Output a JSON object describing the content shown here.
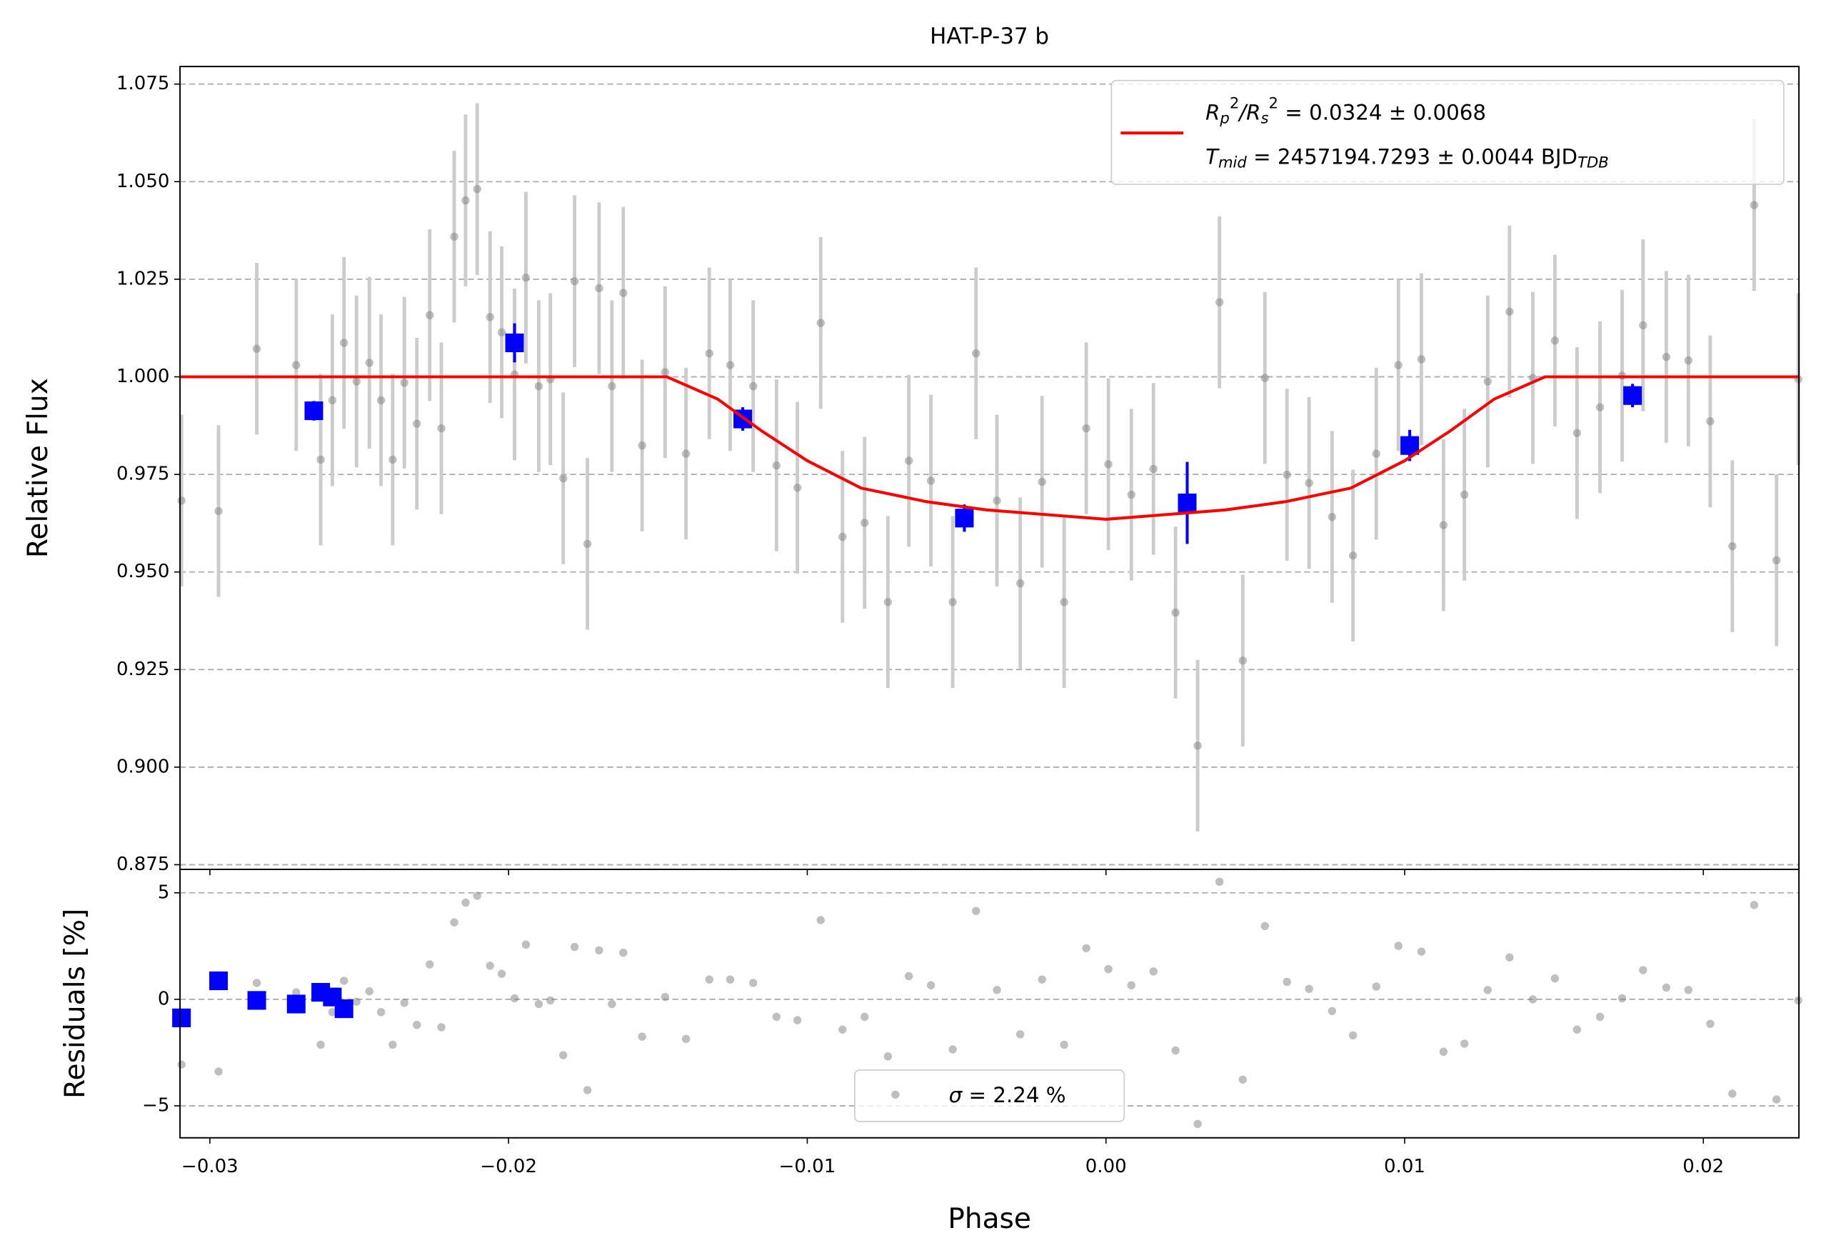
{
  "chart_data": [
    {
      "type": "scatter",
      "title": "HAT-P-37 b",
      "ylabel": "Relative Flux",
      "xlim": [
        -0.031,
        0.0232
      ],
      "ylim": [
        0.8738,
        1.0795
      ],
      "grid": true,
      "legend_loc": "upper right",
      "xticks": [
        {
          "value": -0.03,
          "label": "−0.03"
        },
        {
          "value": -0.02,
          "label": "−0.02"
        },
        {
          "value": -0.01,
          "label": "−0.01"
        },
        {
          "value": 0,
          "label": "0.00"
        },
        0.01,
        0.02
      ],
      "yticks": [
        0.875,
        {
          "value": 0.9,
          "label": "0.900"
        },
        0.925,
        {
          "value": 0.95,
          "label": "0.950"
        },
        0.975,
        {
          "value": 1,
          "label": "1.000"
        },
        1.025,
        {
          "value": 1.05,
          "label": "1.050"
        },
        1.075
      ],
      "x": [
        -0.03095,
        -0.02971,
        -0.02843,
        -0.02711,
        -0.02629,
        -0.0259,
        -0.02551,
        -0.02509,
        -0.02466,
        -0.02427,
        -0.02388,
        -0.02349,
        -0.02307,
        -0.02264,
        -0.02225,
        -0.02182,
        -0.02144,
        -0.02105,
        -0.02062,
        -0.02023,
        -0.0198,
        -0.01942,
        -0.01899,
        -0.0186,
        -0.01817,
        -0.01779,
        -0.01736,
        -0.01697,
        -0.01654,
        -0.01616,
        -0.01553,
        -0.01476,
        -0.01406,
        -0.01328,
        -0.01258,
        -0.01181,
        -0.01103,
        -0.01033,
        -0.00955,
        -0.00882,
        -0.00808,
        -0.0073,
        -0.0066,
        -0.00586,
        -0.00513,
        -0.00435,
        -0.00365,
        -0.00287,
        -0.00214,
        -0.0014,
        -0.00066,
        8e-05,
        0.00085,
        0.00159,
        0.00233,
        0.00307,
        0.0038,
        0.00458,
        0.00532,
        0.00606,
        0.0068,
        0.00757,
        0.00827,
        0.00905,
        0.00979,
        0.01056,
        0.0113,
        0.012,
        0.01278,
        0.01351,
        0.01429,
        0.01503,
        0.01577,
        0.01654,
        0.01728,
        0.01798,
        0.01876,
        0.0195,
        0.02023,
        0.02097,
        0.0217,
        0.02245,
        0.02318
      ],
      "series": [
        {
          "color": "#808080",
          "yerr": 0.022,
          "values": [
            0.9683,
            0.9656,
            1.0072,
            1.003,
            0.9788,
            0.994,
            1.0087,
            0.9988,
            1.0036,
            0.994,
            0.9788,
            0.9985,
            0.988,
            1.0158,
            0.9868,
            1.0359,
            1.0452,
            1.0481,
            1.0153,
            1.0114,
            1.0006,
            1.0254,
            0.9976,
            0.9994,
            0.974,
            1.0245,
            0.9572,
            1.0227,
            0.9976,
            1.0215,
            0.9824,
            1.0012,
            0.9803,
            1.006,
            1.003,
            0.9976,
            0.9773,
            0.9716,
            1.0138,
            0.959,
            0.9626,
            0.9423,
            0.9785,
            0.9734,
            0.9423,
            1.006,
            0.9683,
            0.9471,
            0.9731,
            0.9423,
            0.9868,
            0.9776,
            0.9698,
            0.9764,
            0.9396,
            0.9055,
            1.0191,
            0.9273,
            0.9997,
            0.9749,
            0.9728,
            0.9641,
            0.9542,
            0.9803,
            1.003,
            1.0045,
            0.962,
            0.9698,
            0.9988,
            1.0167,
            0.9997,
            1.0093,
            0.9856,
            0.9922,
            1.0003,
            1.0132,
            1.0051,
            1.0042,
            0.9886,
            0.9566,
            1.044,
            0.953,
            0.9994
          ]
        },
        {
          "color": "#0000ff",
          "x": [
            -0.02652,
            -0.0198,
            -0.01216,
            -0.00474,
            0.00272,
            0.01017,
            0.01763
          ],
          "values": [
            0.9913,
            1.0087,
            0.9892,
            0.9638,
            0.9677,
            0.9824,
            0.9952
          ],
          "yerr": [
            0.0025,
            0.005,
            0.003,
            0.0035,
            0.0105,
            0.004,
            0.003
          ]
        },
        {
          "color": "#ff0000",
          "x": [
            -0.031,
            -0.0147,
            -0.013,
            -0.0115,
            -0.01,
            -0.0082,
            -0.006,
            -0.004,
            -0.002,
            0,
            0.002,
            0.004,
            0.006,
            0.0082,
            0.01,
            0.0115,
            0.013,
            0.0147,
            0.0232
          ],
          "values": [
            1,
            1,
            0.9943,
            0.986,
            0.9785,
            0.9715,
            0.968,
            0.9659,
            0.9647,
            0.9635,
            0.9647,
            0.9659,
            0.968,
            0.9715,
            0.9785,
            0.986,
            0.9943,
            1,
            1
          ],
          "legend": [
            [
              {
                "text": "R",
                "style": "italic"
              },
              {
                "text": "p",
                "style": "sub"
              },
              {
                "text": "2",
                "style": "sup"
              },
              {
                "text": "/",
                "style": "italic"
              },
              {
                "text": "R",
                "style": "italic"
              },
              {
                "text": "s",
                "style": "sub"
              },
              {
                "text": "2",
                "style": "sup"
              },
              {
                "text": " = 0.0324 ± 0.0068",
                "style": "normal"
              }
            ],
            [
              {
                "text": "T",
                "style": "italic"
              },
              {
                "text": "mid",
                "style": "sub"
              },
              {
                "text": " = 2457194.7293 ± 0.0044 BJD",
                "style": "normal"
              },
              {
                "text": "TDB",
                "style": "sub"
              }
            ]
          ]
        }
      ]
    },
    {
      "type": "scatter",
      "xlabel": "Phase",
      "ylabel": "Residuals [%]",
      "ylim": [
        -6.5,
        6.1
      ],
      "grid": true,
      "legend_loc": "lower center",
      "yticks": [
        {
          "value": -5,
          "label": "−5"
        },
        0,
        5
      ],
      "legend": [
        {
          "text": "σ",
          "style": "italic"
        },
        {
          "text": " = 2.24 %",
          "style": "normal"
        }
      ],
      "series": [
        {
          "color": "#808080",
          "values": [
            -3.06,
            -3.39,
            0.77,
            0.33,
            -2.13,
            -0.6,
            0.87,
            -0.11,
            0.38,
            -0.6,
            -2.13,
            -0.16,
            -1.2,
            1.64,
            -1.31,
            3.61,
            4.54,
            4.86,
            1.58,
            1.2,
            0.05,
            2.57,
            -0.22,
            -0.05,
            -2.62,
            2.46,
            -4.26,
            2.3,
            -0.22,
            2.19,
            -1.75,
            0.11,
            -1.86,
            0.93,
            0.93,
            0.77,
            -0.82,
            -0.98,
            3.72,
            -1.42,
            -0.82,
            -2.68,
            1.09,
            0.66,
            -2.35,
            4.15,
            0.44,
            -1.64,
            0.93,
            -2.13,
            2.4,
            1.42,
            0.66,
            1.31,
            -2.4,
            -5.85,
            5.52,
            -3.77,
            3.44,
            0.82,
            0.49,
            -0.55,
            -1.69,
            0.6,
            2.51,
            2.24,
            -2.46,
            -2.08,
            0.44,
            1.97,
            0,
            0.98,
            -1.42,
            -0.82,
            0.05,
            1.37,
            0.55,
            0.44,
            -1.15,
            -4.43,
            4.43,
            -4.7,
            -0.05
          ]
        },
        {
          "color": "#0000ff",
          "values": [
            -0.87,
            0.87,
            -0.05,
            -0.22,
            0.33,
            0.11,
            -0.44
          ]
        }
      ]
    }
  ]
}
